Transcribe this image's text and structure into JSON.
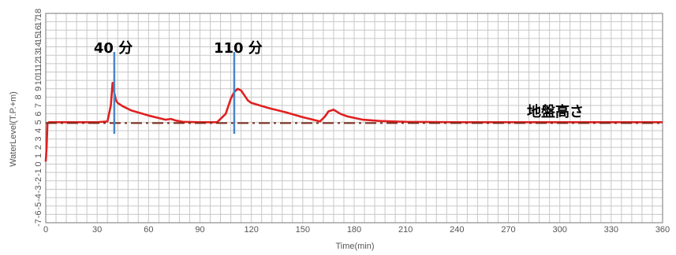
{
  "chart_data": {
    "type": "line",
    "title": "",
    "xlabel": "Time(min)",
    "ylabel": "WaterLevel(T.P.+m)",
    "xlim": [
      0,
      360
    ],
    "ylim": [
      -7,
      18
    ],
    "grid": true,
    "x_ticks": [
      0,
      30,
      60,
      90,
      120,
      150,
      180,
      210,
      240,
      270,
      300,
      330,
      360
    ],
    "y_ticks": [
      18,
      17,
      16,
      15,
      14,
      13,
      12,
      11,
      10,
      9,
      8,
      7,
      6,
      5,
      4,
      3,
      2,
      1,
      0,
      -1,
      -2,
      -3,
      -4,
      -5,
      -6,
      -7
    ],
    "series": [
      {
        "color": "#e02020",
        "style": "solid",
        "x": [
          0,
          0.5,
          1,
          2,
          30,
          36,
          38,
          39,
          40,
          41,
          42,
          45,
          50,
          60,
          70,
          73,
          76,
          80,
          90,
          100,
          105,
          108,
          110,
          112,
          114,
          116,
          118,
          120,
          130,
          140,
          150,
          160,
          163,
          165,
          168,
          172,
          176,
          185,
          195,
          210,
          240,
          270,
          300,
          330,
          360
        ],
        "y": [
          0.3,
          2.0,
          4.9,
          5.0,
          5.0,
          5.1,
          7.0,
          9.7,
          8.5,
          7.6,
          7.3,
          6.9,
          6.4,
          5.8,
          5.3,
          5.4,
          5.2,
          5.05,
          5.0,
          5.0,
          6.0,
          7.8,
          8.6,
          9.0,
          8.8,
          8.2,
          7.6,
          7.3,
          6.7,
          6.2,
          5.6,
          5.1,
          5.7,
          6.3,
          6.5,
          6.0,
          5.7,
          5.3,
          5.15,
          5.05,
          5.0,
          5.0,
          5.0,
          5.0,
          5.0
        ]
      },
      {
        "color": "#7a2a1a",
        "style": "dashdot",
        "x": [
          0,
          360
        ],
        "y": [
          4.9,
          4.9
        ]
      }
    ],
    "markers": [
      {
        "x": 40,
        "label": "40 分",
        "color": "#4a86c8"
      },
      {
        "x": 110,
        "label": "110 分",
        "color": "#4a86c8"
      }
    ],
    "annotations": [
      {
        "text": "地盤高さ"
      }
    ]
  }
}
